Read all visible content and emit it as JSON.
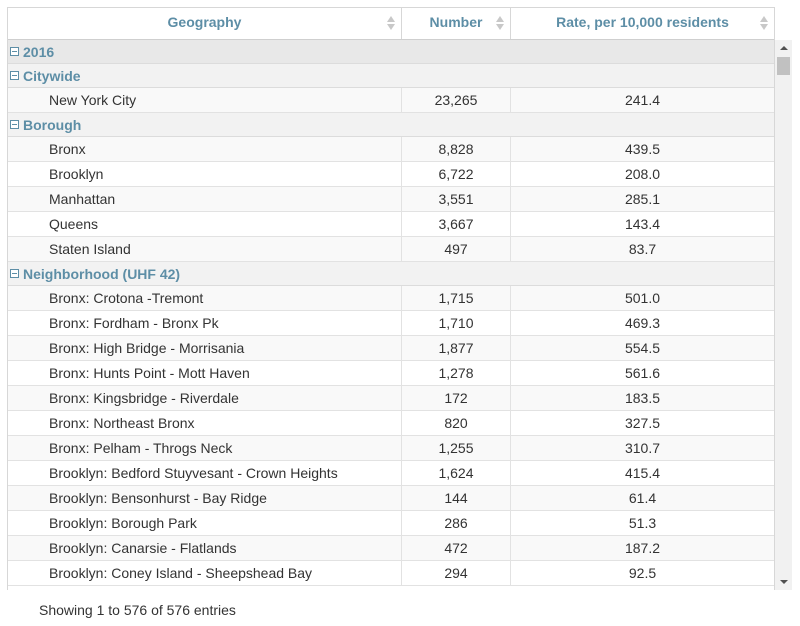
{
  "columns": {
    "geography": "Geography",
    "number": "Number",
    "rate": "Rate, per 10,000 residents"
  },
  "groups": {
    "year": "2016",
    "citywide": "Citywide",
    "borough": "Borough",
    "neighborhood": "Neighborhood (UHF 42)"
  },
  "citywide_rows": [
    {
      "geo": "New York City",
      "number": "23,265",
      "rate": "241.4"
    }
  ],
  "borough_rows": [
    {
      "geo": "Bronx",
      "number": "8,828",
      "rate": "439.5"
    },
    {
      "geo": "Brooklyn",
      "number": "6,722",
      "rate": "208.0"
    },
    {
      "geo": "Manhattan",
      "number": "3,551",
      "rate": "285.1"
    },
    {
      "geo": "Queens",
      "number": "3,667",
      "rate": "143.4"
    },
    {
      "geo": "Staten Island",
      "number": "497",
      "rate": "83.7"
    }
  ],
  "neighborhood_rows": [
    {
      "geo": "Bronx: Crotona -Tremont",
      "number": "1,715",
      "rate": "501.0"
    },
    {
      "geo": "Bronx: Fordham - Bronx Pk",
      "number": "1,710",
      "rate": "469.3"
    },
    {
      "geo": "Bronx: High Bridge - Morrisania",
      "number": "1,877",
      "rate": "554.5"
    },
    {
      "geo": "Bronx: Hunts Point - Mott Haven",
      "number": "1,278",
      "rate": "561.6"
    },
    {
      "geo": "Bronx: Kingsbridge - Riverdale",
      "number": "172",
      "rate": "183.5"
    },
    {
      "geo": "Bronx: Northeast Bronx",
      "number": "820",
      "rate": "327.5"
    },
    {
      "geo": "Bronx: Pelham - Throgs Neck",
      "number": "1,255",
      "rate": "310.7"
    },
    {
      "geo": "Brooklyn: Bedford Stuyvesant - Crown Heights",
      "number": "1,624",
      "rate": "415.4"
    },
    {
      "geo": "Brooklyn: Bensonhurst - Bay Ridge",
      "number": "144",
      "rate": "61.4"
    },
    {
      "geo": "Brooklyn: Borough Park",
      "number": "286",
      "rate": "51.3"
    },
    {
      "geo": "Brooklyn: Canarsie - Flatlands",
      "number": "472",
      "rate": "187.2"
    },
    {
      "geo": "Brooklyn: Coney Island - Sheepshead Bay",
      "number": "294",
      "rate": "92.5"
    }
  ],
  "footer": {
    "info": "Showing 1 to 576 of 576 entries"
  },
  "colors": {
    "accent": "#5d8ea6",
    "group_bg": "#f2f2f2"
  }
}
